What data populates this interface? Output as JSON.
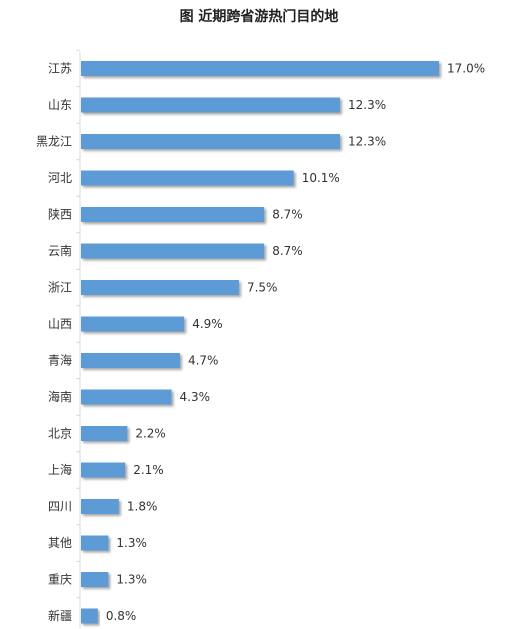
{
  "chart_data": {
    "type": "bar",
    "orientation": "horizontal",
    "title": "图  近期跨省游热门目的地",
    "categories": [
      "江苏",
      "山东",
      "黑龙江",
      "河北",
      "陕西",
      "云南",
      "浙江",
      "山西",
      "青海",
      "海南",
      "北京",
      "上海",
      "四川",
      "其他",
      "重庆",
      "新疆"
    ],
    "values": [
      17.0,
      12.3,
      12.3,
      10.1,
      8.7,
      8.7,
      7.5,
      4.9,
      4.7,
      4.3,
      2.2,
      2.1,
      1.8,
      1.3,
      1.3,
      0.8
    ],
    "value_labels": [
      "17.0%",
      "12.3%",
      "12.3%",
      "10.1%",
      "8.7%",
      "8.7%",
      "7.5%",
      "4.9%",
      "4.7%",
      "4.3%",
      "2.2%",
      "2.1%",
      "1.8%",
      "1.3%",
      "1.3%",
      "0.8%"
    ],
    "unit": "%",
    "xlim": [
      0,
      17.0
    ],
    "bar_color": "#5b9bd5",
    "grid": false,
    "legend": "none"
  }
}
